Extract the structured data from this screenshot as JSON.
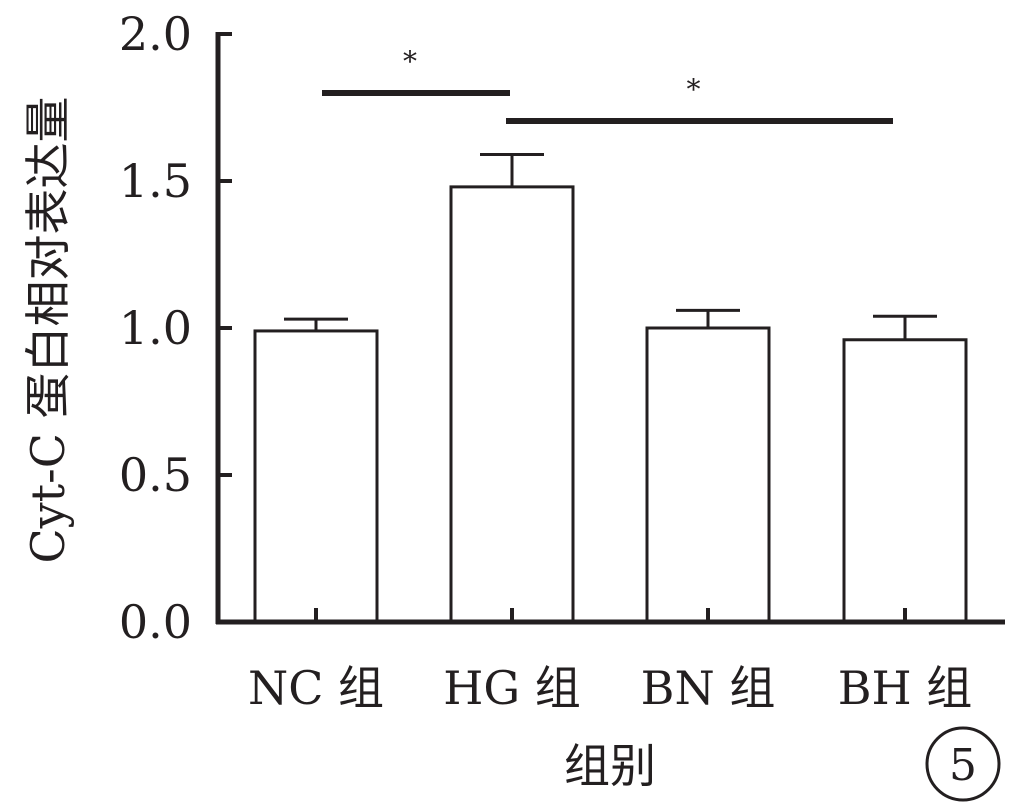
{
  "chart_data": {
    "type": "bar",
    "categories": [
      "NC 组",
      "HG 组",
      "BN 组",
      "BH 组"
    ],
    "values": [
      0.99,
      1.48,
      1.0,
      0.96
    ],
    "errors": [
      0.04,
      0.11,
      0.06,
      0.08
    ],
    "ylim": [
      0,
      2.0
    ],
    "yticks": [
      "0.0",
      "0.5",
      "1.0",
      "1.5",
      "2.0"
    ],
    "xlabel": "组别",
    "ylabel": "Cyt-C 蛋白相对表达量",
    "significance": [
      {
        "from": "NC 组",
        "to": "HG 组",
        "mark": "*"
      },
      {
        "from": "HG 组",
        "to": "BH 组",
        "mark": "*"
      }
    ],
    "grid": false,
    "legend": "none"
  },
  "panel_label": "5"
}
